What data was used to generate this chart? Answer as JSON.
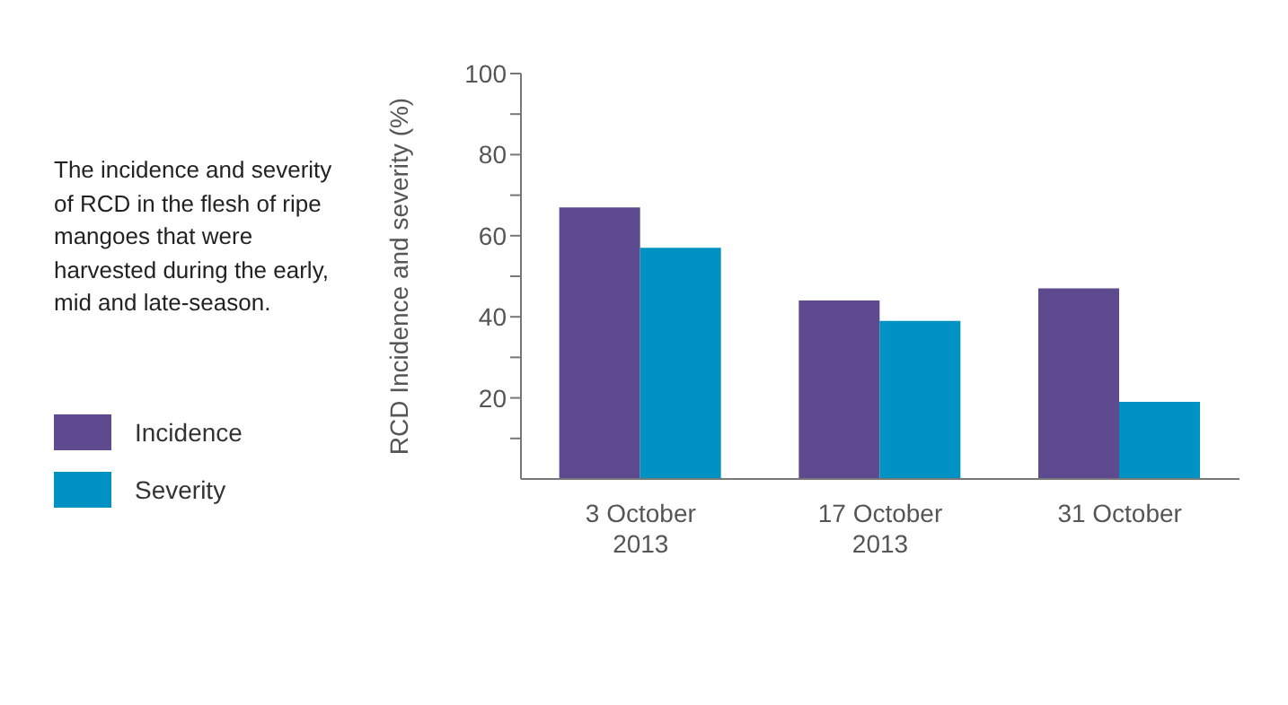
{
  "chart_data": {
    "type": "bar",
    "title": "The incidence and severity of RCD in the flesh of ripe mangoes that were harvested during the early, mid and late-season.",
    "ylabel": "RCD Incidence and severity (%)",
    "categories": [
      "3 October\n2013",
      "17 October\n2013",
      "31 October"
    ],
    "series": [
      {
        "name": "Incidence",
        "color": "#5e4a8e",
        "values": [
          67,
          44,
          47
        ]
      },
      {
        "name": "Severity",
        "color": "#0092c2",
        "values": [
          57,
          39,
          19
        ]
      }
    ],
    "ylim": [
      0,
      100
    ],
    "yticks": [
      {
        "value": 10,
        "label": null
      },
      20,
      {
        "value": 30,
        "label": null
      },
      40,
      {
        "value": 50,
        "label": null
      },
      60,
      {
        "value": 70,
        "label": null
      },
      80,
      {
        "value": 90,
        "label": null
      },
      100
    ],
    "grid": false,
    "legend": "left"
  }
}
